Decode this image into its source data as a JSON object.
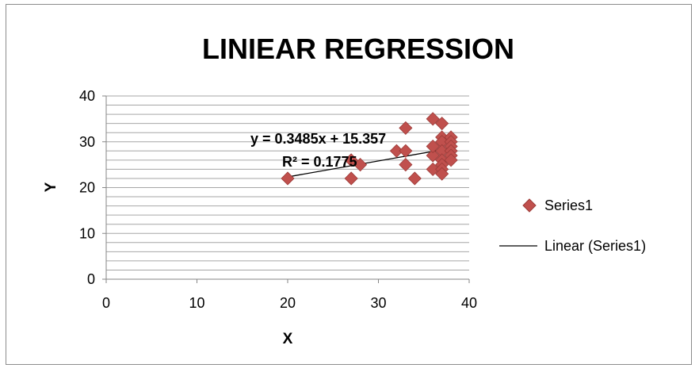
{
  "colors": {
    "marker": "#c0504d",
    "marker_stroke": "#9c3b38",
    "trendline": "#000000",
    "gridline": "#a6a6a6",
    "axis": "#868686"
  },
  "chart_data": {
    "type": "scatter",
    "title": "LINIEAR REGRESSION",
    "xlabel": "X",
    "ylabel": "Y",
    "xlim": [
      0,
      40
    ],
    "ylim": [
      0,
      40
    ],
    "x_ticks": [
      0,
      10,
      20,
      30,
      40
    ],
    "y_ticks": [
      0,
      10,
      20,
      30,
      40
    ],
    "y_minor_step": 2,
    "grid": true,
    "legend_position": "right",
    "series": [
      {
        "name": "Series1",
        "marker": "diamond",
        "points": [
          [
            20,
            22
          ],
          [
            27,
            22
          ],
          [
            27,
            26
          ],
          [
            28,
            25
          ],
          [
            32,
            28
          ],
          [
            33,
            33
          ],
          [
            33,
            28
          ],
          [
            33,
            25
          ],
          [
            34,
            22
          ],
          [
            36,
            35
          ],
          [
            36,
            27
          ],
          [
            36,
            24
          ],
          [
            36,
            29
          ],
          [
            37,
            34
          ],
          [
            37,
            31
          ],
          [
            37,
            30
          ],
          [
            37,
            28
          ],
          [
            37,
            26
          ],
          [
            37,
            25
          ],
          [
            37,
            24
          ],
          [
            37,
            23
          ],
          [
            38,
            31
          ],
          [
            38,
            30
          ],
          [
            38,
            29
          ],
          [
            38,
            28
          ],
          [
            38,
            27
          ],
          [
            38,
            26
          ]
        ]
      }
    ],
    "trendline": {
      "name": "Linear (Series1)",
      "slope": 0.3485,
      "intercept": 15.357,
      "x_range": [
        20,
        38
      ],
      "equation_label": "y = 0.3485x + 15.357",
      "r2_label": "R² = 0.1775"
    }
  }
}
